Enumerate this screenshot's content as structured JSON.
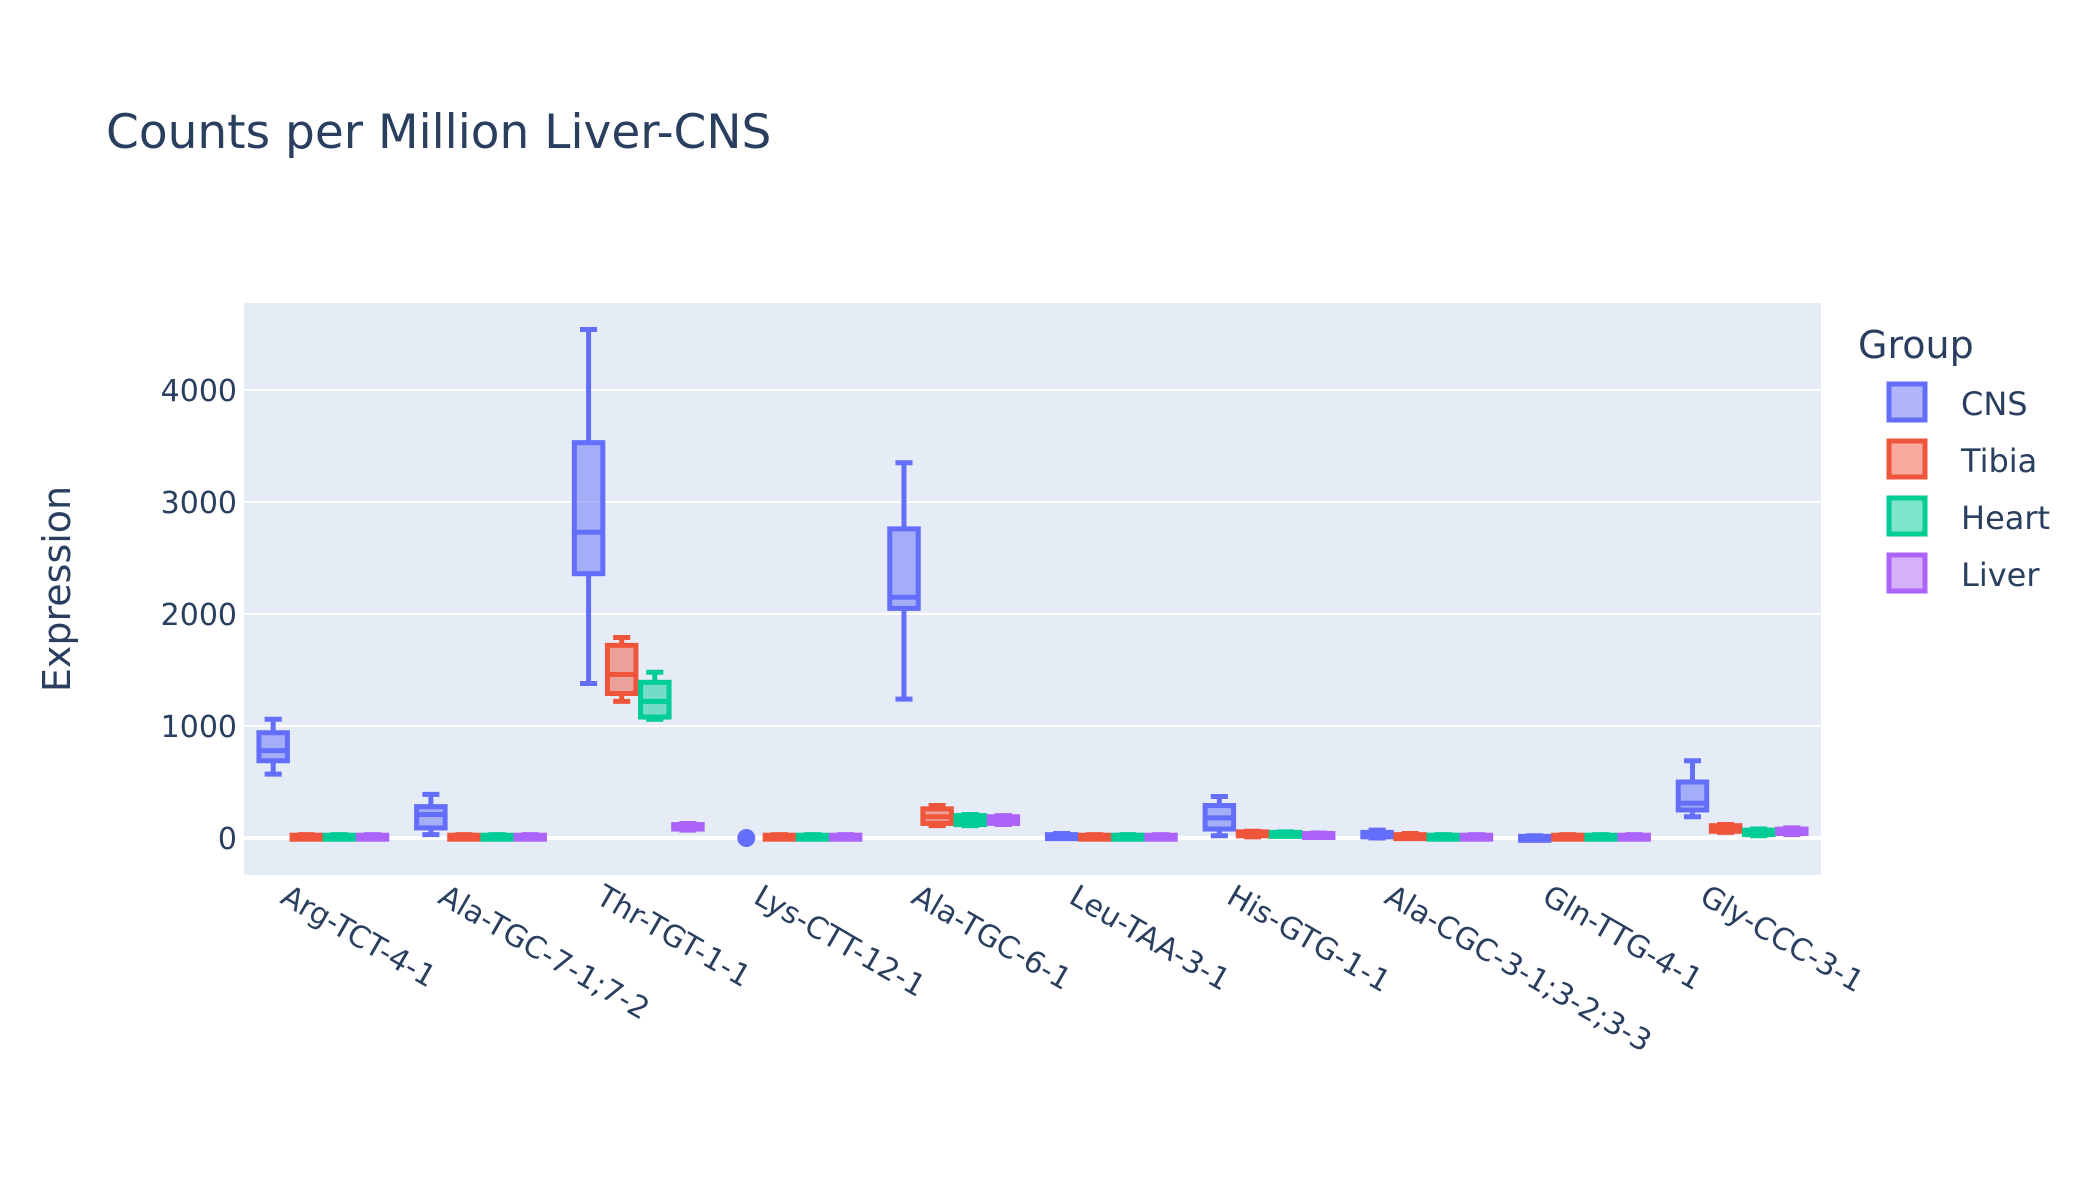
{
  "chart_data": {
    "type": "box",
    "title": "Counts per Million Liver-CNS",
    "xlabel": "",
    "ylabel": "Expression",
    "ylim": [
      -260,
      4800
    ],
    "yticks": [
      0,
      1000,
      2000,
      3000,
      4000
    ],
    "grid": true,
    "legend_title": "Group",
    "legend_position": "right",
    "categories": [
      "Arg-TCT-4-1",
      "Ala-TGC-7-1;7-2",
      "Thr-TGT-1-1",
      "Lys-CTT-12-1",
      "Ala-TGC-6-1",
      "Leu-TAA-3-1",
      "His-GTG-1-1",
      "Ala-CGC-3-1;3-2;3-3",
      "Gln-TTG-4-1",
      "Gly-CCC-3-1"
    ],
    "series": [
      {
        "name": "CNS",
        "color": "#636efa",
        "boxes": [
          {
            "min": 570,
            "q1": 690,
            "median": 780,
            "q3": 940,
            "max": 1060
          },
          {
            "min": 30,
            "q1": 90,
            "median": 210,
            "q3": 280,
            "max": 390
          },
          {
            "min": 1380,
            "q1": 2360,
            "median": 2730,
            "q3": 3530,
            "max": 4540
          },
          {
            "min": 0,
            "q1": 0,
            "median": 0,
            "q3": 0,
            "max": 0
          },
          {
            "min": 1240,
            "q1": 2050,
            "median": 2150,
            "q3": 2760,
            "max": 3350
          },
          {
            "min": 0,
            "q1": 0,
            "median": 10,
            "q3": 30,
            "max": 40
          },
          {
            "min": 20,
            "q1": 80,
            "median": 180,
            "q3": 290,
            "max": 370
          },
          {
            "min": 0,
            "q1": 10,
            "median": 30,
            "q3": 50,
            "max": 70
          },
          {
            "min": 0,
            "q1": 0,
            "median": 5,
            "q3": 15,
            "max": 20
          },
          {
            "min": 190,
            "q1": 250,
            "median": 310,
            "q3": 500,
            "max": 690
          }
        ]
      },
      {
        "name": "Tibia",
        "color": "#ef553b",
        "boxes": [
          {
            "min": 0,
            "q1": 0,
            "median": 10,
            "q3": 25,
            "max": 30
          },
          {
            "min": 0,
            "q1": 0,
            "median": 10,
            "q3": 25,
            "max": 30
          },
          {
            "min": 1220,
            "q1": 1290,
            "median": 1460,
            "q3": 1720,
            "max": 1790
          },
          {
            "min": 0,
            "q1": 0,
            "median": 10,
            "q3": 25,
            "max": 30
          },
          {
            "min": 110,
            "q1": 130,
            "median": 190,
            "q3": 260,
            "max": 290
          },
          {
            "min": 0,
            "q1": 0,
            "median": 10,
            "q3": 25,
            "max": 30
          },
          {
            "min": 10,
            "q1": 20,
            "median": 40,
            "q3": 55,
            "max": 60
          },
          {
            "min": 0,
            "q1": 5,
            "median": 15,
            "q3": 30,
            "max": 40
          },
          {
            "min": 0,
            "q1": 0,
            "median": 10,
            "q3": 25,
            "max": 30
          },
          {
            "min": 50,
            "q1": 60,
            "median": 90,
            "q3": 110,
            "max": 120
          }
        ]
      },
      {
        "name": "Heart",
        "color": "#00cc96",
        "boxes": [
          {
            "min": 0,
            "q1": 0,
            "median": 10,
            "q3": 25,
            "max": 30
          },
          {
            "min": 0,
            "q1": 0,
            "median": 10,
            "q3": 25,
            "max": 30
          },
          {
            "min": 1060,
            "q1": 1080,
            "median": 1220,
            "q3": 1390,
            "max": 1480
          },
          {
            "min": 0,
            "q1": 0,
            "median": 10,
            "q3": 25,
            "max": 30
          },
          {
            "min": 110,
            "q1": 120,
            "median": 160,
            "q3": 200,
            "max": 210
          },
          {
            "min": 0,
            "q1": 0,
            "median": 10,
            "q3": 25,
            "max": 30
          },
          {
            "min": 20,
            "q1": 30,
            "median": 40,
            "q3": 50,
            "max": 55
          },
          {
            "min": 0,
            "q1": 0,
            "median": 10,
            "q3": 25,
            "max": 30
          },
          {
            "min": 0,
            "q1": 0,
            "median": 10,
            "q3": 25,
            "max": 30
          },
          {
            "min": 20,
            "q1": 30,
            "median": 50,
            "q3": 70,
            "max": 80
          }
        ]
      },
      {
        "name": "Liver",
        "color": "#ab63fa",
        "boxes": [
          {
            "min": 0,
            "q1": 0,
            "median": 10,
            "q3": 25,
            "max": 30
          },
          {
            "min": 0,
            "q1": 0,
            "median": 10,
            "q3": 25,
            "max": 30
          },
          {
            "min": 70,
            "q1": 80,
            "median": 100,
            "q3": 120,
            "max": 130
          },
          {
            "min": 0,
            "q1": 0,
            "median": 10,
            "q3": 25,
            "max": 30
          },
          {
            "min": 120,
            "q1": 130,
            "median": 160,
            "q3": 190,
            "max": 200
          },
          {
            "min": 0,
            "q1": 0,
            "median": 10,
            "q3": 25,
            "max": 30
          },
          {
            "min": 10,
            "q1": 15,
            "median": 30,
            "q3": 40,
            "max": 45
          },
          {
            "min": 0,
            "q1": 0,
            "median": 10,
            "q3": 25,
            "max": 30
          },
          {
            "min": 0,
            "q1": 0,
            "median": 10,
            "q3": 25,
            "max": 30
          },
          {
            "min": 30,
            "q1": 40,
            "median": 60,
            "q3": 80,
            "max": 90
          }
        ]
      }
    ],
    "outliers": [
      {
        "series": "CNS",
        "category": "Lys-CTT-12-1",
        "value": 0
      }
    ]
  }
}
